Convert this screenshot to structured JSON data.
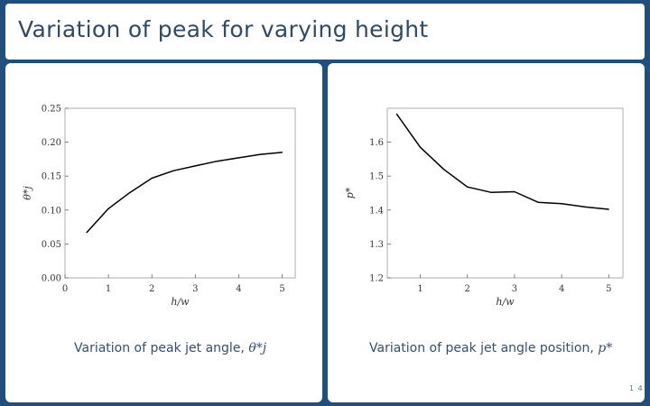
{
  "slide": {
    "title": "Variation of peak for varying height",
    "page_number": "1 4",
    "colors": {
      "background": "#1f4f7a",
      "panel": "#ffffff",
      "title_text": "#2f4a63"
    }
  },
  "left_panel": {
    "caption_text": "Variation of peak jet angle, ",
    "caption_math": "θ*j"
  },
  "right_panel": {
    "caption_text": "Variation of peak jet angle position, ",
    "caption_math": "p*"
  },
  "chart_data": [
    {
      "type": "line",
      "xlabel": "h/w",
      "ylabel": "θ*j",
      "xlim": [
        0,
        5.3
      ],
      "ylim": [
        0.0,
        0.25
      ],
      "x_ticks": [
        0,
        1,
        2,
        3,
        4,
        5
      ],
      "x_tick_labels": [
        "0",
        "1",
        "2",
        "3",
        "4",
        "5"
      ],
      "y_ticks": [
        0.0,
        0.05,
        0.1,
        0.15,
        0.2,
        0.25
      ],
      "y_tick_labels": [
        "0.00",
        "0.05",
        "0.10",
        "0.15",
        "0.20",
        "0.25"
      ],
      "grid": false,
      "series": [
        {
          "x": [
            0.5,
            1.0,
            1.5,
            2.0,
            2.5,
            3.0,
            3.5,
            4.0,
            4.5,
            5.0
          ],
          "values": [
            0.067,
            0.102,
            0.126,
            0.147,
            0.158,
            0.165,
            0.172,
            0.177,
            0.182,
            0.185
          ]
        }
      ]
    },
    {
      "type": "line",
      "xlabel": "h/w",
      "ylabel": "p*",
      "xlim": [
        0.3,
        5.3
      ],
      "ylim": [
        1.2,
        1.7
      ],
      "x_ticks": [
        1,
        2,
        3,
        4,
        5
      ],
      "x_tick_labels": [
        "1",
        "2",
        "3",
        "4",
        "5"
      ],
      "y_ticks": [
        1.2,
        1.3,
        1.4,
        1.5,
        1.6
      ],
      "y_tick_labels": [
        "1.2",
        "1.3",
        "1.4",
        "1.5",
        "1.6"
      ],
      "grid": false,
      "series": [
        {
          "x": [
            0.5,
            1.0,
            1.5,
            2.0,
            2.5,
            3.0,
            3.5,
            4.0,
            4.5,
            5.0
          ],
          "values": [
            1.683,
            1.585,
            1.52,
            1.468,
            1.452,
            1.454,
            1.423,
            1.419,
            1.409,
            1.402
          ]
        }
      ]
    }
  ]
}
